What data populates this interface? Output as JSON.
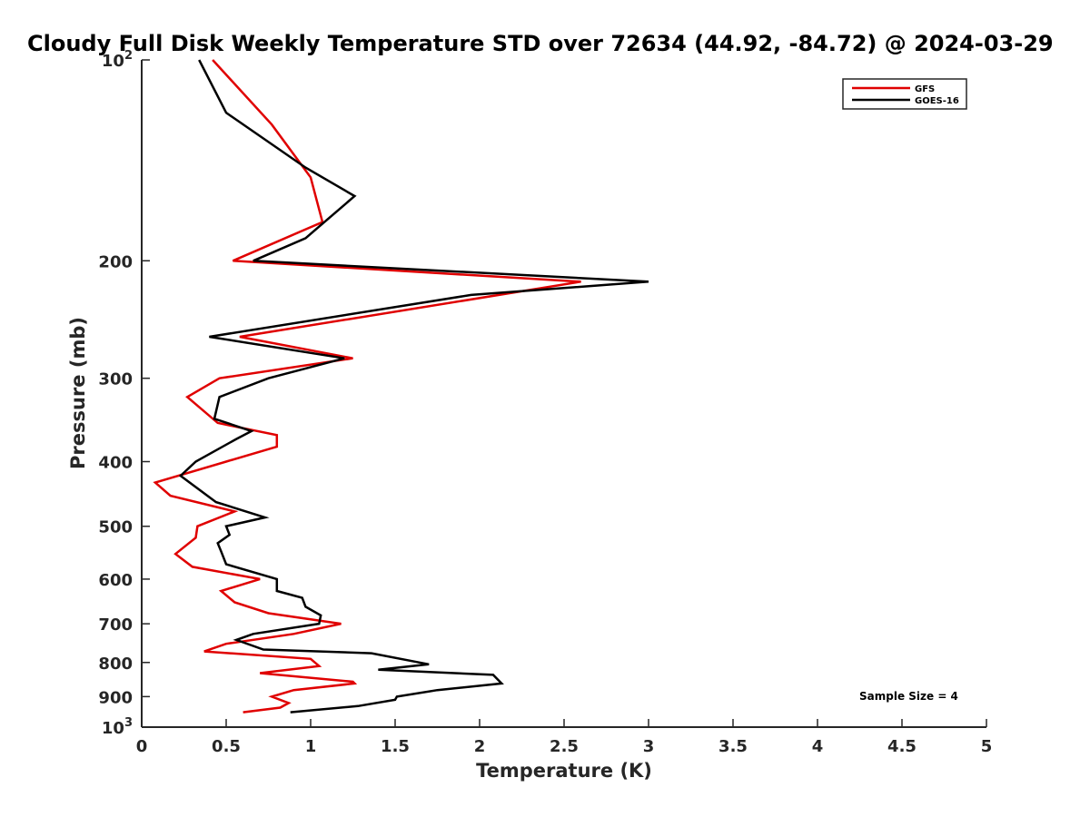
{
  "chart_data": {
    "type": "line",
    "title": "Cloudy Full Disk Weekly Temperature STD over 72634 (44.92, -84.72) @ 2024-03-29",
    "xlabel": "Temperature (K)",
    "ylabel": "Pressure (mb)",
    "xlim": [
      0,
      5
    ],
    "ylim": [
      100,
      1000
    ],
    "y_scale": "log",
    "y_reversed": true,
    "grid": false,
    "legend_position": "top-right",
    "x_ticks": [
      "0",
      "0.5",
      "1",
      "1.5",
      "2",
      "2.5",
      "3",
      "3.5",
      "4",
      "4.5",
      "5"
    ],
    "y_ticks": [
      {
        "value": 100,
        "base": "10",
        "exp": "2"
      },
      {
        "value": 200,
        "base": "200",
        "exp": ""
      },
      {
        "value": 300,
        "base": "300",
        "exp": ""
      },
      {
        "value": 400,
        "base": "400",
        "exp": ""
      },
      {
        "value": 500,
        "base": "500",
        "exp": ""
      },
      {
        "value": 600,
        "base": "600",
        "exp": ""
      },
      {
        "value": 700,
        "base": "700",
        "exp": ""
      },
      {
        "value": 800,
        "base": "800",
        "exp": ""
      },
      {
        "value": 900,
        "base": "900",
        "exp": ""
      },
      {
        "value": 1000,
        "base": "10",
        "exp": "3"
      }
    ],
    "annotation": "Sample Size = 4",
    "series": [
      {
        "name": "GFS",
        "color": "#e00000",
        "points": [
          [
            0.42,
            100
          ],
          [
            0.77,
            125
          ],
          [
            1.0,
            150
          ],
          [
            1.07,
            175
          ],
          [
            0.54,
            200
          ],
          [
            2.6,
            215
          ],
          [
            0.58,
            260
          ],
          [
            1.25,
            280
          ],
          [
            0.46,
            300
          ],
          [
            0.27,
            320
          ],
          [
            0.45,
            350
          ],
          [
            0.8,
            365
          ],
          [
            0.8,
            380
          ],
          [
            0.5,
            400
          ],
          [
            0.08,
            430
          ],
          [
            0.17,
            450
          ],
          [
            0.55,
            475
          ],
          [
            0.33,
            500
          ],
          [
            0.32,
            520
          ],
          [
            0.2,
            550
          ],
          [
            0.3,
            575
          ],
          [
            0.7,
            600
          ],
          [
            0.47,
            625
          ],
          [
            0.55,
            650
          ],
          [
            0.75,
            675
          ],
          [
            1.18,
            700
          ],
          [
            0.9,
            725
          ],
          [
            0.5,
            750
          ],
          [
            0.37,
            770
          ],
          [
            1.0,
            790
          ],
          [
            1.05,
            810
          ],
          [
            0.7,
            830
          ],
          [
            1.25,
            855
          ],
          [
            1.26,
            860
          ],
          [
            0.9,
            880
          ],
          [
            0.77,
            900
          ],
          [
            0.87,
            920
          ],
          [
            0.82,
            935
          ],
          [
            0.6,
            950
          ]
        ]
      },
      {
        "name": "GOES-16",
        "color": "#000000",
        "points": [
          [
            0.34,
            100
          ],
          [
            0.5,
            120
          ],
          [
            0.97,
            145
          ],
          [
            1.26,
            160
          ],
          [
            0.97,
            185
          ],
          [
            0.66,
            200
          ],
          [
            3.0,
            215
          ],
          [
            1.95,
            225
          ],
          [
            0.4,
            260
          ],
          [
            1.2,
            280
          ],
          [
            0.75,
            300
          ],
          [
            0.46,
            320
          ],
          [
            0.43,
            345
          ],
          [
            0.65,
            360
          ],
          [
            0.56,
            370
          ],
          [
            0.32,
            400
          ],
          [
            0.23,
            420
          ],
          [
            0.44,
            460
          ],
          [
            0.73,
            485
          ],
          [
            0.5,
            500
          ],
          [
            0.52,
            515
          ],
          [
            0.45,
            530
          ],
          [
            0.47,
            545
          ],
          [
            0.5,
            570
          ],
          [
            0.8,
            600
          ],
          [
            0.8,
            625
          ],
          [
            0.95,
            640
          ],
          [
            0.97,
            660
          ],
          [
            1.06,
            680
          ],
          [
            1.05,
            700
          ],
          [
            0.66,
            725
          ],
          [
            0.56,
            740
          ],
          [
            0.72,
            765
          ],
          [
            1.36,
            775
          ],
          [
            1.7,
            805
          ],
          [
            1.4,
            820
          ],
          [
            2.08,
            835
          ],
          [
            2.13,
            860
          ],
          [
            1.75,
            880
          ],
          [
            1.51,
            900
          ],
          [
            1.5,
            910
          ],
          [
            1.28,
            930
          ],
          [
            0.88,
            950
          ]
        ]
      }
    ]
  }
}
